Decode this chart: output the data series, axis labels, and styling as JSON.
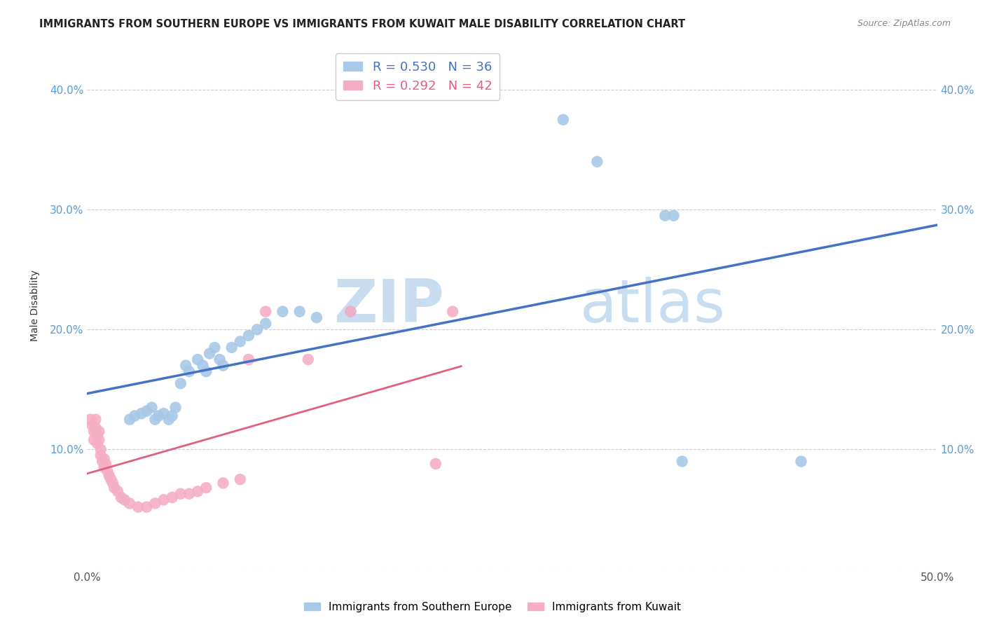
{
  "title": "IMMIGRANTS FROM SOUTHERN EUROPE VS IMMIGRANTS FROM KUWAIT MALE DISABILITY CORRELATION CHART",
  "source": "Source: ZipAtlas.com",
  "ylabel": "Male Disability",
  "xlim": [
    0.0,
    0.5
  ],
  "ylim": [
    0.0,
    0.44
  ],
  "blue_R": 0.53,
  "blue_N": 36,
  "pink_R": 0.292,
  "pink_N": 42,
  "blue_color": "#a8c8e8",
  "blue_line_color": "#4472c4",
  "pink_color": "#f4afc4",
  "pink_line_color": "#e06080",
  "pink_dash_color": "#e8a0b0",
  "watermark_color": "#c8ddf0",
  "blue_points_x": [
    0.025,
    0.028,
    0.032,
    0.035,
    0.038,
    0.04,
    0.042,
    0.045,
    0.048,
    0.05,
    0.052,
    0.055,
    0.058,
    0.06,
    0.065,
    0.068,
    0.07,
    0.072,
    0.075,
    0.078,
    0.08,
    0.085,
    0.09,
    0.095,
    0.1,
    0.105,
    0.115,
    0.125,
    0.135,
    0.155,
    0.28,
    0.3,
    0.34,
    0.345,
    0.35,
    0.42
  ],
  "blue_points_y": [
    0.125,
    0.128,
    0.13,
    0.132,
    0.135,
    0.125,
    0.128,
    0.13,
    0.125,
    0.128,
    0.135,
    0.155,
    0.17,
    0.165,
    0.175,
    0.17,
    0.165,
    0.18,
    0.185,
    0.175,
    0.17,
    0.185,
    0.19,
    0.195,
    0.2,
    0.205,
    0.215,
    0.215,
    0.21,
    0.215,
    0.375,
    0.34,
    0.295,
    0.295,
    0.09,
    0.09
  ],
  "pink_points_x": [
    0.002,
    0.003,
    0.004,
    0.004,
    0.005,
    0.005,
    0.006,
    0.006,
    0.007,
    0.007,
    0.008,
    0.008,
    0.009,
    0.01,
    0.01,
    0.011,
    0.012,
    0.013,
    0.014,
    0.015,
    0.016,
    0.018,
    0.02,
    0.022,
    0.025,
    0.03,
    0.035,
    0.04,
    0.045,
    0.05,
    0.055,
    0.06,
    0.065,
    0.07,
    0.08,
    0.09,
    0.095,
    0.105,
    0.13,
    0.155,
    0.205,
    0.215
  ],
  "pink_points_y": [
    0.125,
    0.12,
    0.115,
    0.108,
    0.118,
    0.125,
    0.112,
    0.105,
    0.108,
    0.115,
    0.1,
    0.095,
    0.09,
    0.085,
    0.092,
    0.088,
    0.082,
    0.078,
    0.075,
    0.072,
    0.068,
    0.065,
    0.06,
    0.058,
    0.055,
    0.052,
    0.052,
    0.055,
    0.058,
    0.06,
    0.063,
    0.063,
    0.065,
    0.068,
    0.072,
    0.075,
    0.175,
    0.215,
    0.175,
    0.215,
    0.088,
    0.215
  ],
  "legend_label_blue": "Immigrants from Southern Europe",
  "legend_label_pink": "Immigrants from Kuwait"
}
